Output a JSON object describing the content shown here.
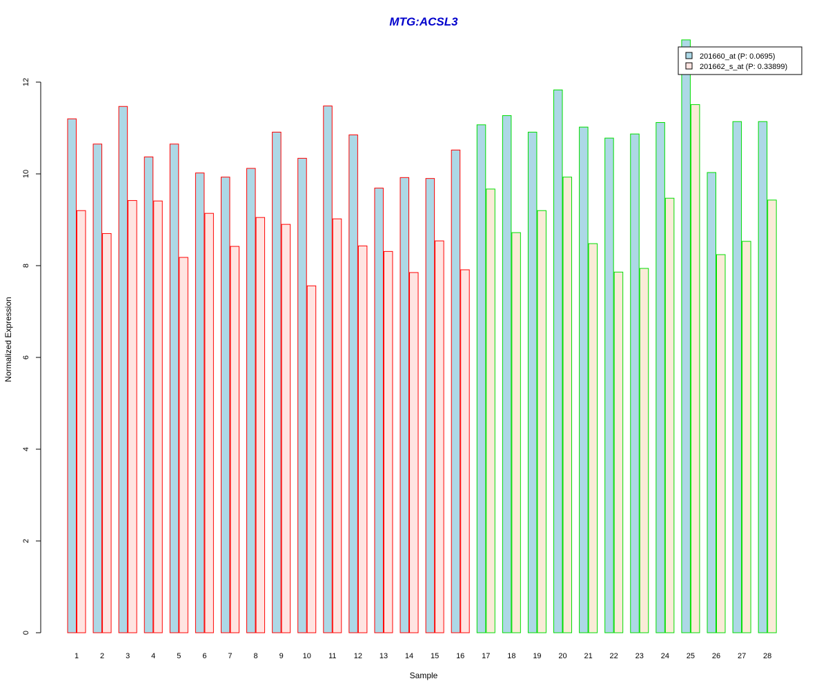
{
  "chart_data": {
    "type": "bar",
    "title": "MTG:ACSL3",
    "xlabel": "Sample",
    "ylabel": "Normalized Expression",
    "ylim": [
      0,
      12
    ],
    "yticks": [
      "0",
      "2",
      "4",
      "6",
      "8",
      "10",
      "12"
    ],
    "categories": [
      "1",
      "2",
      "3",
      "4",
      "5",
      "6",
      "7",
      "8",
      "9",
      "10",
      "11",
      "12",
      "13",
      "14",
      "15",
      "16",
      "17",
      "18",
      "19",
      "20",
      "21",
      "22",
      "23",
      "24",
      "25",
      "26",
      "27",
      "28"
    ],
    "series": [
      {
        "name": "201660_at (P: 0.0695)",
        "values": [
          11.2,
          10.65,
          11.47,
          10.37,
          10.65,
          10.02,
          9.93,
          10.12,
          10.91,
          10.34,
          11.48,
          10.85,
          9.69,
          9.92,
          9.9,
          10.52,
          11.07,
          11.27,
          10.91,
          11.83,
          11.02,
          10.78,
          10.87,
          11.12,
          12.92,
          10.03,
          11.14,
          11.14
        ]
      },
      {
        "name": "201662_s_at (P: 0.33899)",
        "values": [
          9.2,
          8.7,
          9.42,
          9.41,
          8.18,
          9.14,
          8.42,
          9.05,
          8.9,
          7.56,
          9.02,
          8.43,
          8.31,
          7.85,
          8.54,
          7.91,
          9.67,
          8.72,
          9.2,
          9.93,
          8.48,
          7.86,
          7.94,
          9.47,
          11.51,
          8.24,
          8.53,
          9.43
        ]
      }
    ],
    "group_border_colors": [
      "#ff0000",
      "#ff0000",
      "#ff0000",
      "#ff0000",
      "#ff0000",
      "#ff0000",
      "#ff0000",
      "#ff0000",
      "#ff0000",
      "#ff0000",
      "#ff0000",
      "#ff0000",
      "#ff0000",
      "#ff0000",
      "#ff0000",
      "#ff0000",
      "#00dd00",
      "#00dd00",
      "#00dd00",
      "#00dd00",
      "#00dd00",
      "#00dd00",
      "#00dd00",
      "#00dd00",
      "#00dd00",
      "#00dd00",
      "#00dd00",
      "#00dd00"
    ],
    "colors": {
      "title": "#0000cc",
      "series1_fill": "#add8e6",
      "series2_fill_group1": "#ffe4e1",
      "series2_fill_group2": "#faebd7",
      "legend_series2_fill": "#ffe4e1",
      "legend_border": "#000000"
    },
    "legend_position": "top-right",
    "grid": false
  }
}
